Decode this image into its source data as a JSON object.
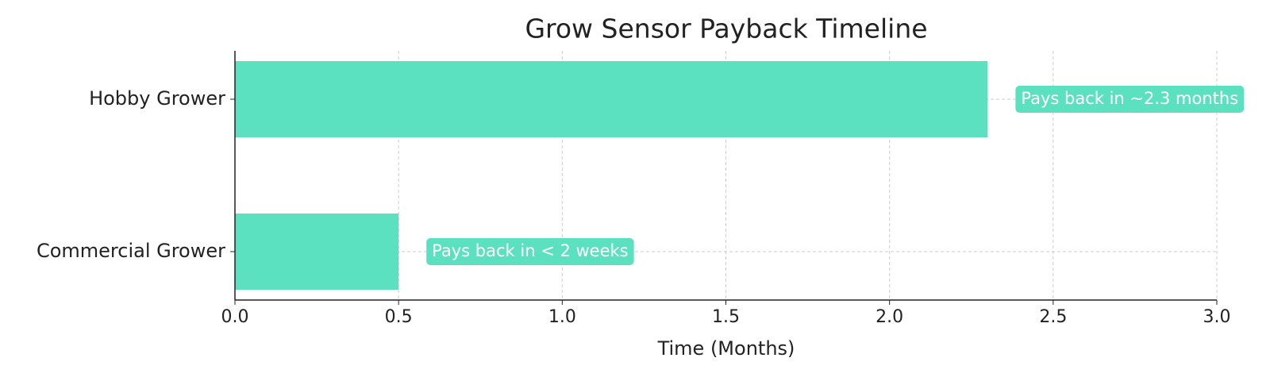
{
  "chart_data": {
    "type": "barh",
    "title": "Grow Sensor Payback Timeline",
    "xlabel": "Time (Months)",
    "categories": [
      "Hobby Grower",
      "Commercial Grower"
    ],
    "values": [
      2.3,
      0.5
    ],
    "annotations": [
      "Pays back in ~2.3 months",
      "Pays back in < 2 weeks"
    ],
    "color": "#5ce1c0",
    "xlim": [
      0,
      3
    ],
    "xticks": [
      {
        "value": 0,
        "label": "0.0"
      },
      0.5,
      {
        "value": 1,
        "label": "1.0"
      },
      1.5,
      {
        "value": 2,
        "label": "2.0"
      },
      2.5,
      {
        "value": 3,
        "label": "3.0"
      }
    ],
    "grid": true
  }
}
